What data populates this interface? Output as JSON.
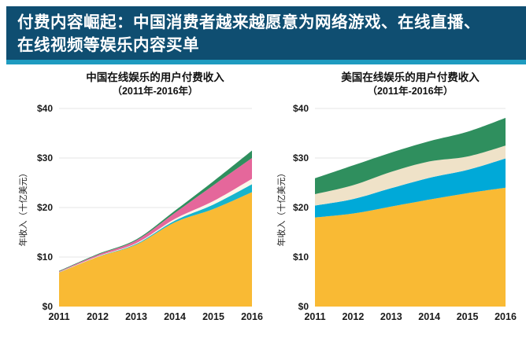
{
  "header": {
    "line1": "付费内容崛起：中国消费者越来越愿意为网络游戏、在线直播、",
    "line2": "在线视频等娱乐内容买单",
    "bg_color": "#0F4E71",
    "accent_color": "#1E9BC0"
  },
  "chart_data": [
    {
      "type": "area",
      "stacked": true,
      "title": "中国在线娱乐的用户付费收入",
      "subtitle": "（2011年-2016年）",
      "ylabel": "年收入（十亿美元）",
      "x": [
        2011,
        2012,
        2013,
        2014,
        2015,
        2016
      ],
      "ylim": [
        0,
        40
      ],
      "yticks": [
        {
          "value": 0,
          "label": "$0"
        },
        {
          "value": 10,
          "label": "$10"
        },
        {
          "value": 20,
          "label": "$20"
        },
        {
          "value": 30,
          "label": "$30"
        },
        {
          "value": 40,
          "label": "$40"
        }
      ],
      "grid": true,
      "legend": false,
      "series": [
        {
          "name": "layer-yellow",
          "color": "#F9BA34",
          "values": [
            6.85,
            10.0,
            12.5,
            17.0,
            19.7,
            23.1
          ]
        },
        {
          "name": "layer-teal",
          "color": "#17B4CC",
          "values": [
            0.05,
            0.05,
            0.15,
            0.35,
            0.9,
            1.6
          ]
        },
        {
          "name": "layer-white",
          "color": "#FBF6EA",
          "values": [
            0.05,
            0.1,
            0.15,
            0.35,
            0.7,
            1.1
          ]
        },
        {
          "name": "layer-pink",
          "color": "#E5679B",
          "values": [
            0.15,
            0.3,
            0.55,
            1.2,
            3.2,
            4.2
          ]
        },
        {
          "name": "layer-green",
          "color": "#2F8F5E",
          "values": [
            0.1,
            0.15,
            0.2,
            0.45,
            0.8,
            1.5
          ]
        }
      ]
    },
    {
      "type": "area",
      "stacked": true,
      "title": "美国在线娱乐的用户付费收入",
      "subtitle": "（2011年-2016年）",
      "ylabel": "年收入（十亿美元）",
      "x": [
        2011,
        2012,
        2013,
        2014,
        2015,
        2016
      ],
      "ylim": [
        0,
        40
      ],
      "yticks": [
        {
          "value": 0,
          "label": "$0"
        },
        {
          "value": 10,
          "label": "$10"
        },
        {
          "value": 20,
          "label": "$20"
        },
        {
          "value": 30,
          "label": "$30"
        },
        {
          "value": 40,
          "label": "$40"
        }
      ],
      "grid": true,
      "legend": false,
      "series": [
        {
          "name": "layer-yellow",
          "color": "#F9BA34",
          "values": [
            18.0,
            18.8,
            20.2,
            21.6,
            22.9,
            24.0
          ]
        },
        {
          "name": "layer-blue",
          "color": "#00A9D8",
          "values": [
            2.4,
            2.9,
            3.7,
            4.4,
            4.7,
            5.9
          ]
        },
        {
          "name": "layer-cream",
          "color": "#EFE2C8",
          "values": [
            2.3,
            2.8,
            3.3,
            3.3,
            2.7,
            2.6
          ]
        },
        {
          "name": "layer-green",
          "color": "#2F8F5E",
          "values": [
            3.2,
            4.0,
            3.9,
            4.1,
            5.0,
            5.6
          ]
        }
      ]
    }
  ],
  "style": {
    "gridline_color": "#E6E6E6",
    "tick_text_color": "#1a1a1a"
  }
}
